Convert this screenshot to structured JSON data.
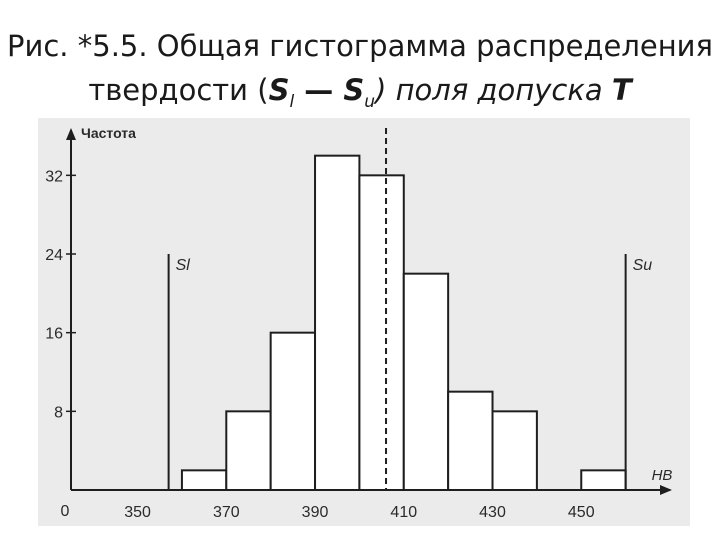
{
  "caption": {
    "prefix": "Рис. *5.5. Общая гистограмма распределения",
    "line2_a": "твердости (",
    "s_letter": "S",
    "sub_l": "l",
    "dash": " — ",
    "s_letter2": "S",
    "sub_u": "u",
    "line2_b": ") поля допуска ",
    "t_letter": "T"
  },
  "chart_data": {
    "type": "bar",
    "title": "",
    "xlabel": "НВ",
    "ylabel": "Частота",
    "origin_label": "0",
    "x_ticks": [
      350,
      370,
      390,
      410,
      430,
      450
    ],
    "y_ticks": [
      8,
      16,
      24,
      32
    ],
    "xlim": [
      335,
      470
    ],
    "ylim": [
      0,
      36
    ],
    "bins": [
      {
        "x0": 360,
        "x1": 370,
        "value": 2
      },
      {
        "x0": 370,
        "x1": 380,
        "value": 8
      },
      {
        "x0": 380,
        "x1": 390,
        "value": 16
      },
      {
        "x0": 390,
        "x1": 400,
        "value": 34
      },
      {
        "x0": 400,
        "x1": 410,
        "value": 32
      },
      {
        "x0": 410,
        "x1": 420,
        "value": 22
      },
      {
        "x0": 420,
        "x1": 430,
        "value": 10
      },
      {
        "x0": 430,
        "x1": 440,
        "value": 8
      },
      {
        "x0": 450,
        "x1": 460,
        "value": 2
      }
    ],
    "limits": [
      {
        "label": "Sl",
        "x": 357,
        "value": 24
      },
      {
        "label": "Su",
        "x": 460,
        "value": 24
      }
    ],
    "center_line": {
      "x": 406,
      "style": "dashed"
    },
    "grid": false
  }
}
